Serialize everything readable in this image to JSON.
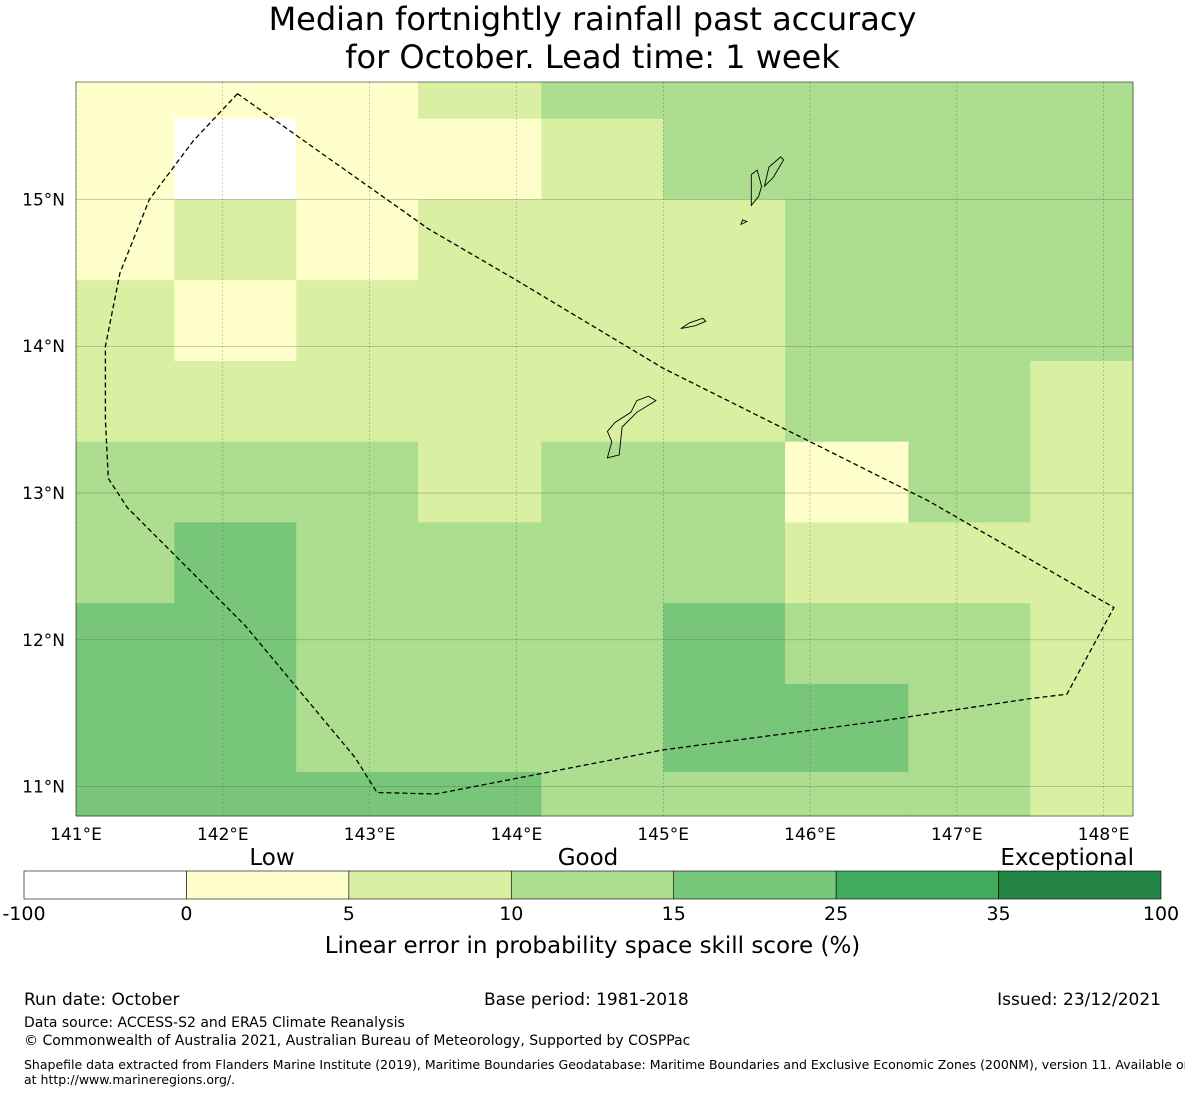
{
  "title": {
    "line1": "Median fortnightly rainfall past accuracy",
    "line2": "for October. Lead time: 1 week"
  },
  "map": {
    "lon_range": [
      141.0,
      148.2
    ],
    "lat_range": [
      10.8,
      15.8
    ],
    "lon_ticks": [
      {
        "value": 141,
        "label": "141°E"
      },
      {
        "value": 142,
        "label": "142°E"
      },
      {
        "value": 143,
        "label": "143°E"
      },
      {
        "value": 144,
        "label": "144°E"
      },
      {
        "value": 145,
        "label": "145°E"
      },
      {
        "value": 146,
        "label": "146°E"
      },
      {
        "value": 147,
        "label": "147°E"
      },
      {
        "value": 148,
        "label": "148°E"
      }
    ],
    "lat_ticks": [
      {
        "value": 15,
        "label": "15°N"
      },
      {
        "value": 14,
        "label": "14°N"
      },
      {
        "value": 13,
        "label": "13°N"
      },
      {
        "value": 12,
        "label": "12°N"
      },
      {
        "value": 11,
        "label": "11°N"
      }
    ],
    "grid_lon_edges": [
      141.0,
      141.67,
      142.5,
      143.33,
      144.17,
      145.0,
      145.83,
      146.67,
      147.5,
      148.2
    ],
    "grid_lat_edges": [
      15.8,
      15.55,
      15.0,
      14.45,
      13.9,
      13.35,
      12.8,
      12.25,
      11.7,
      11.1,
      10.8
    ],
    "skill_grid": [
      [
        "low",
        "low",
        "low",
        "good_low",
        "good_mid",
        "good_mid",
        "good_mid",
        "good_mid",
        "good_mid"
      ],
      [
        "low",
        "none",
        "low",
        "low",
        "good_low",
        "good_mid",
        "good_mid",
        "good_mid",
        "good_mid"
      ],
      [
        "low",
        "good_low",
        "low",
        "good_low",
        "good_low",
        "good_low",
        "good_mid",
        "good_mid",
        "good_mid"
      ],
      [
        "good_low",
        "low",
        "good_low",
        "good_low",
        "good_low",
        "good_low",
        "good_mid",
        "good_mid",
        "good_mid"
      ],
      [
        "good_low",
        "good_low",
        "good_low",
        "good_low",
        "good_low",
        "good_low",
        "good_mid",
        "good_mid",
        "good_low"
      ],
      [
        "good_mid",
        "good_mid",
        "good_mid",
        "good_low",
        "good_mid",
        "good_mid",
        "low",
        "good_mid",
        "good_low"
      ],
      [
        "good_mid",
        "good_high",
        "good_mid",
        "good_mid",
        "good_mid",
        "good_mid",
        "good_low",
        "good_low",
        "good_low"
      ],
      [
        "good_high",
        "good_high",
        "good_mid",
        "good_mid",
        "good_mid",
        "good_high",
        "good_mid",
        "good_mid",
        "good_low"
      ],
      [
        "good_high",
        "good_high",
        "good_mid",
        "good_mid",
        "good_mid",
        "good_high",
        "good_high",
        "good_mid",
        "good_low"
      ],
      [
        "good_high",
        "good_high",
        "good_high",
        "good_high",
        "good_mid",
        "good_mid",
        "good_mid",
        "good_mid",
        "good_low"
      ]
    ],
    "eez_boundary": [
      [
        142.1,
        15.72
      ],
      [
        141.8,
        15.4
      ],
      [
        141.5,
        15.0
      ],
      [
        141.3,
        14.5
      ],
      [
        141.2,
        14.0
      ],
      [
        141.2,
        13.5
      ],
      [
        141.22,
        13.1
      ],
      [
        141.35,
        12.9
      ],
      [
        142.15,
        12.1
      ],
      [
        142.9,
        11.2
      ],
      [
        143.05,
        10.96
      ],
      [
        143.45,
        10.95
      ],
      [
        145.0,
        11.25
      ],
      [
        146.5,
        11.45
      ],
      [
        147.5,
        11.6
      ],
      [
        147.75,
        11.63
      ],
      [
        148.07,
        12.22
      ],
      [
        146.8,
        12.95
      ],
      [
        145.8,
        13.45
      ],
      [
        145.0,
        13.85
      ],
      [
        144.0,
        14.45
      ],
      [
        143.4,
        14.8
      ],
      [
        142.1,
        15.72
      ]
    ],
    "islands": [
      [
        [
          144.62,
          13.24
        ],
        [
          144.7,
          13.26
        ],
        [
          144.72,
          13.45
        ],
        [
          144.82,
          13.55
        ],
        [
          144.95,
          13.63
        ],
        [
          144.9,
          13.66
        ],
        [
          144.82,
          13.63
        ],
        [
          144.78,
          13.55
        ],
        [
          144.67,
          13.48
        ],
        [
          144.62,
          13.42
        ],
        [
          144.65,
          13.35
        ],
        [
          144.62,
          13.24
        ]
      ],
      [
        [
          145.12,
          14.12
        ],
        [
          145.18,
          14.16
        ],
        [
          145.27,
          14.19
        ],
        [
          145.29,
          14.17
        ],
        [
          145.22,
          14.14
        ],
        [
          145.12,
          14.12
        ]
      ],
      [
        [
          145.6,
          14.96
        ],
        [
          145.65,
          15.02
        ],
        [
          145.67,
          15.09
        ],
        [
          145.64,
          15.2
        ],
        [
          145.6,
          15.17
        ],
        [
          145.6,
          15.05
        ],
        [
          145.6,
          14.96
        ]
      ],
      [
        [
          145.69,
          15.09
        ],
        [
          145.75,
          15.15
        ],
        [
          145.82,
          15.27
        ],
        [
          145.8,
          15.29
        ],
        [
          145.72,
          15.22
        ],
        [
          145.69,
          15.09
        ]
      ],
      [
        [
          145.53,
          14.83
        ],
        [
          145.57,
          14.85
        ],
        [
          145.54,
          14.86
        ],
        [
          145.53,
          14.83
        ]
      ]
    ]
  },
  "legend": {
    "categories": [
      {
        "label": "Low"
      },
      {
        "label": "Good"
      },
      {
        "label": "Exceptional"
      }
    ],
    "bins": [
      {
        "key": "none",
        "color": "#ffffff"
      },
      {
        "key": "low",
        "color": "#ffffcc"
      },
      {
        "key": "good_low",
        "color": "#d9f0a3"
      },
      {
        "key": "good_mid",
        "color": "#addd8e"
      },
      {
        "key": "good_high",
        "color": "#78c679"
      },
      {
        "key": "exc_low",
        "color": "#41ab5d"
      },
      {
        "key": "exc_high",
        "color": "#238443"
      }
    ],
    "tick_labels": [
      "-100",
      "0",
      "5",
      "10",
      "15",
      "25",
      "35",
      "100"
    ],
    "axis_label": "Linear error in probability space skill score (%)"
  },
  "footer": {
    "run_date": "Run date: October",
    "base_period": "Base period: 1981-2018",
    "issued": "Issued: 23/12/2021",
    "data_source": "Data source: ACCESS-S2 and ERA5 Climate Reanalysis",
    "copyright": "© Commonwealth of Australia 2021, Australian Bureau of Meteorology, Supported by COSPPac",
    "shapefile_line1": "Shapefile data extracted from Flanders Marine Institute (2019), Maritime Boundaries Geodatabase: Maritime Boundaries and Exclusive Economic Zones (200NM), version 11. Available online",
    "shapefile_line2": "at http://www.marineregions.org/."
  }
}
